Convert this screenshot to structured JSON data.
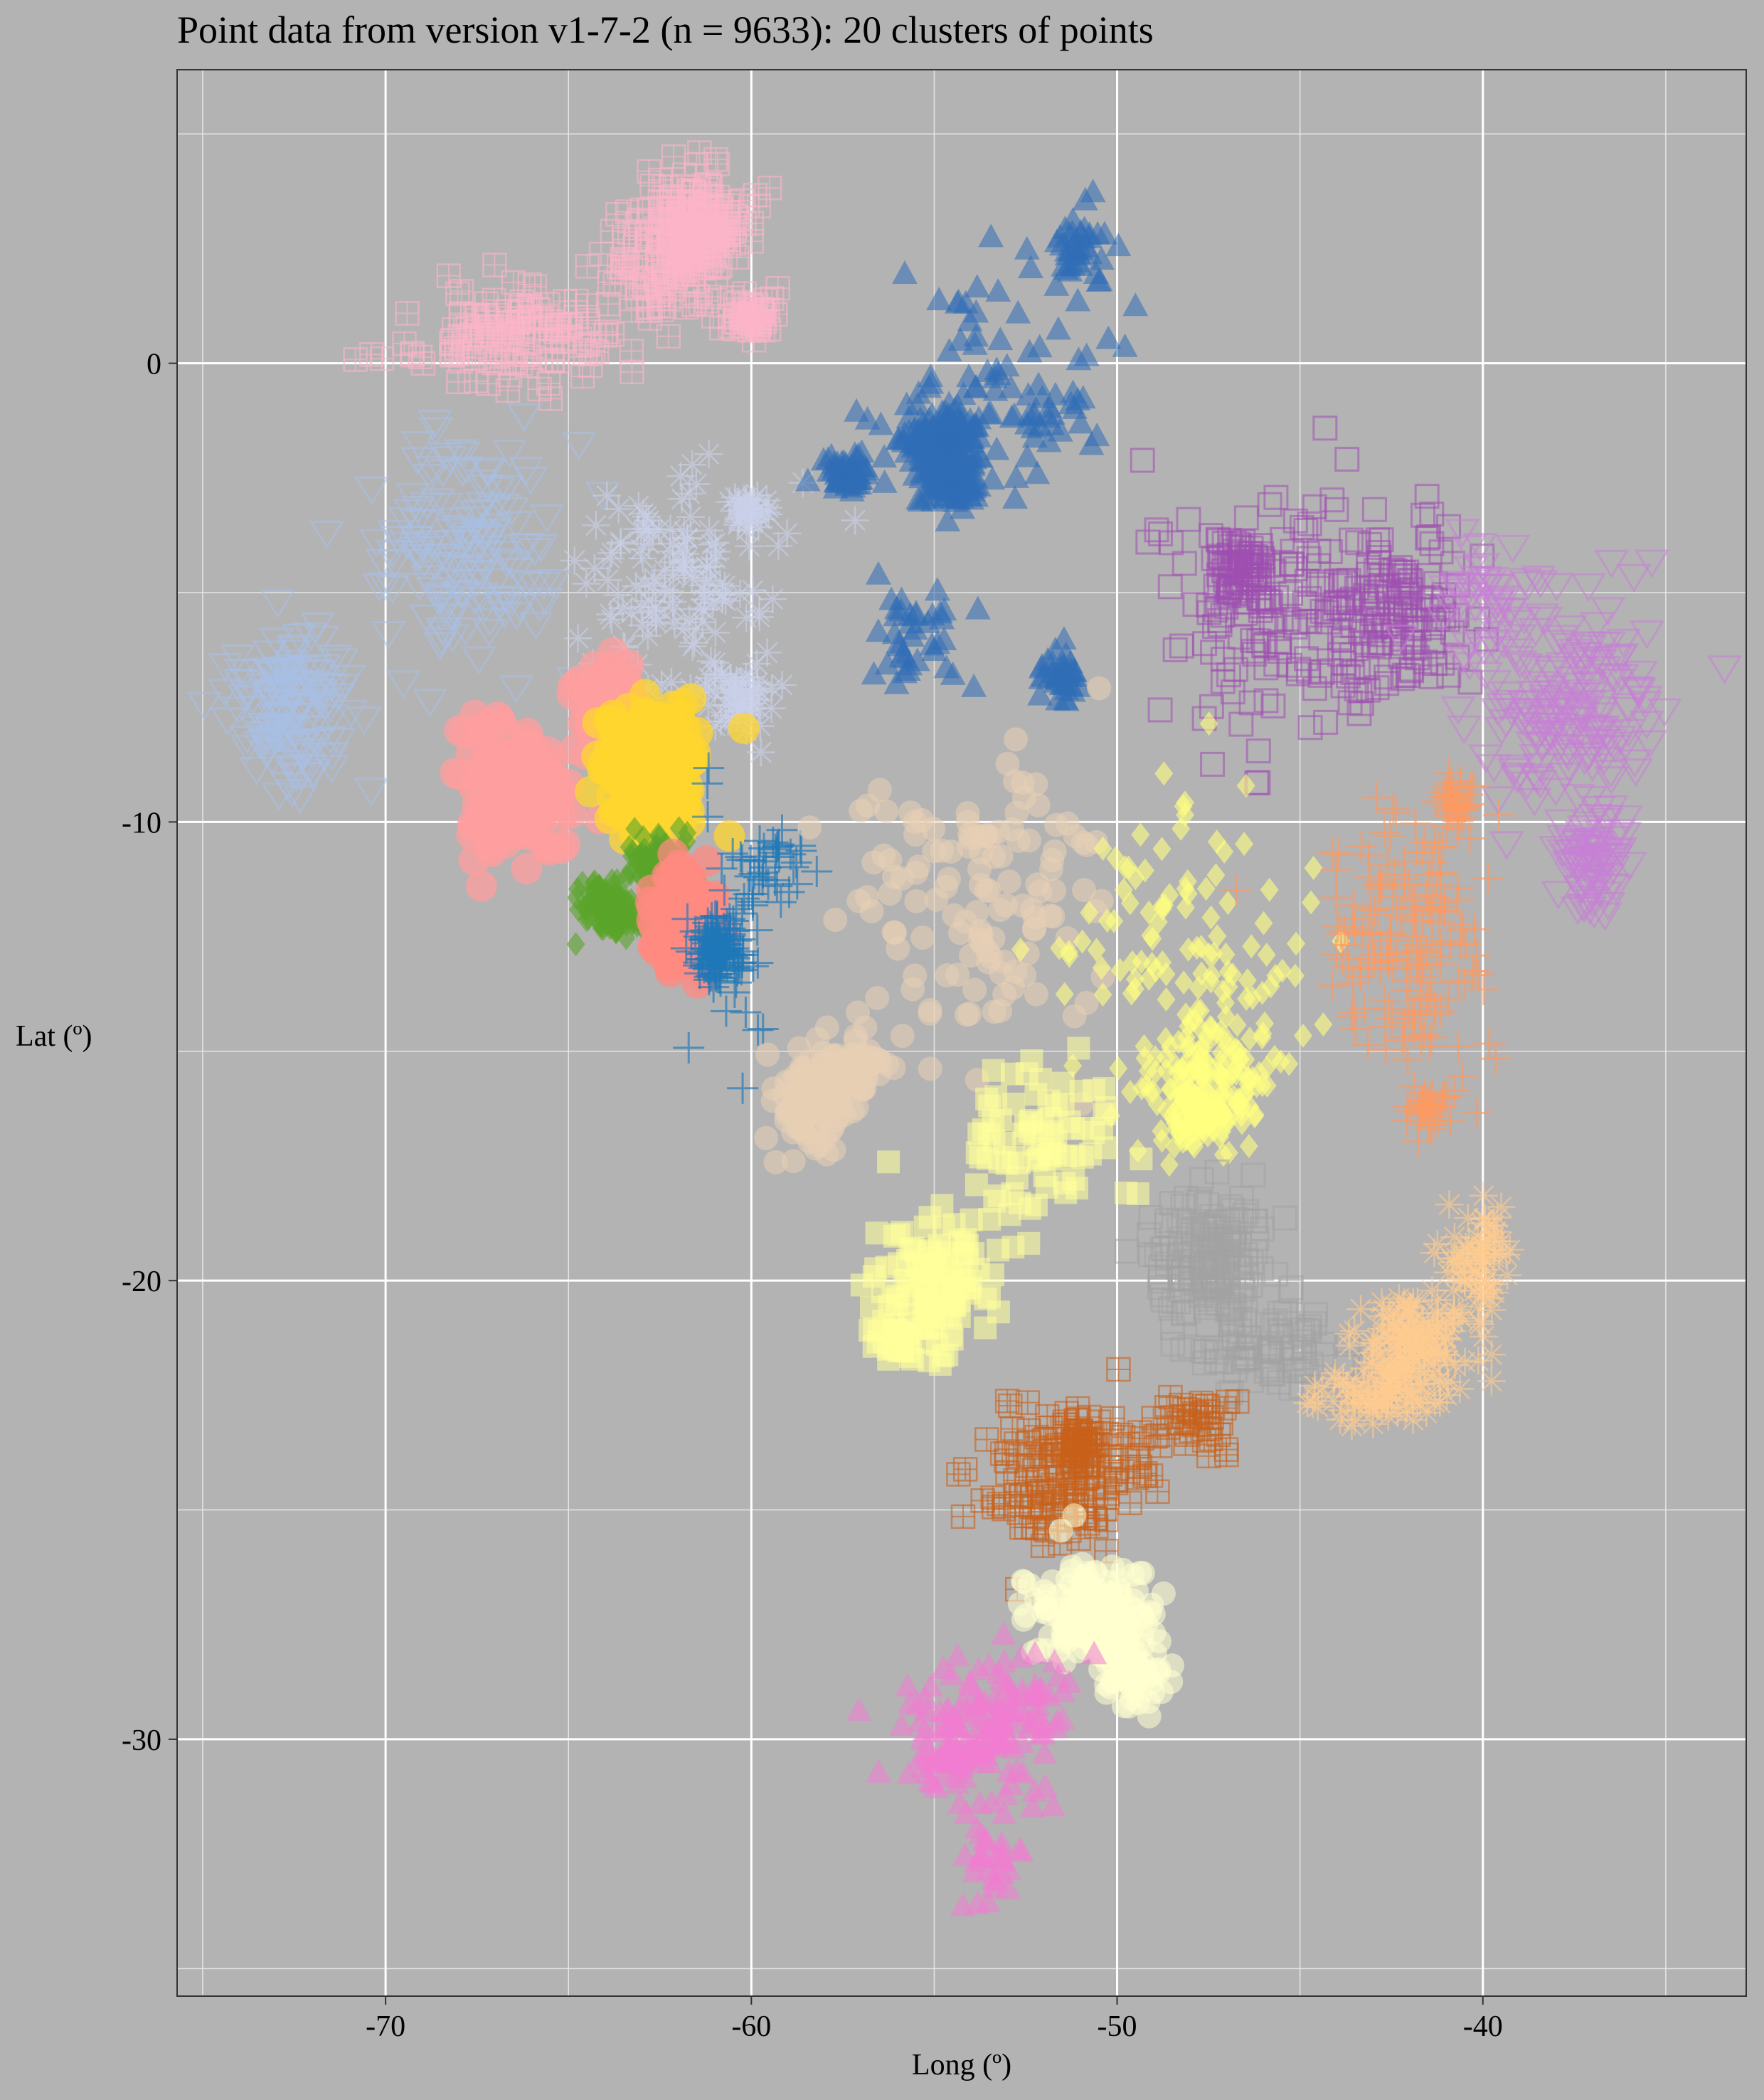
{
  "chart_data": {
    "type": "scatter",
    "title": "Point data from version v1-7-2 (n = 9633): 20 clusters of points",
    "xlabel": "Long (º)",
    "ylabel": "Lat (º)",
    "xlim": [
      -75.7,
      -32.8
    ],
    "ylim": [
      -35.6,
      6.4
    ],
    "xticks": [
      -70,
      -60,
      -50,
      -40
    ],
    "xtick_labels": [
      "-70",
      "-60",
      "-50",
      "-40"
    ],
    "yticks": [
      0,
      -10,
      -20,
      -30
    ],
    "ytick_labels": [
      "0",
      "-10",
      "-20",
      "-30"
    ],
    "grid": true,
    "legend": "none",
    "n": 9633,
    "series": [
      {
        "color": "#fbb4c8",
        "marker": "square-plus",
        "open": true,
        "clusters": [
          [
            -62.0,
            2.6,
            1.8,
            1.3,
            160
          ],
          [
            -66.5,
            0.6,
            2.6,
            0.9,
            140
          ],
          [
            -61.4,
            3.0,
            0.9,
            1.0,
            120
          ],
          [
            -60.0,
            1.0,
            0.6,
            0.4,
            60
          ]
        ]
      },
      {
        "color": "#a8c0e6",
        "marker": "tri-down",
        "open": true,
        "clusters": [
          [
            -72.5,
            -7.6,
            1.5,
            1.6,
            150
          ],
          [
            -68.0,
            -4.0,
            2.5,
            2.2,
            150
          ]
        ]
      },
      {
        "color": "#c9d0ea",
        "marker": "asterisk",
        "open": false,
        "clusters": [
          [
            -62.0,
            -5.0,
            2.5,
            2.3,
            130
          ],
          [
            -60.4,
            -7.2,
            0.7,
            0.7,
            50
          ],
          [
            -60.0,
            -3.2,
            0.5,
            0.4,
            30
          ]
        ]
      },
      {
        "color": "#2f6db6",
        "marker": "tri-up",
        "open": false,
        "clusters": [
          [
            -54.8,
            -1.6,
            0.9,
            0.5,
            140
          ],
          [
            -54.5,
            -2.6,
            0.7,
            0.5,
            100
          ],
          [
            -57.4,
            -2.4,
            0.5,
            0.4,
            60
          ],
          [
            -53.5,
            -1.0,
            3.0,
            2.5,
            90
          ],
          [
            -51.5,
            -6.8,
            0.5,
            0.6,
            40
          ],
          [
            -51.0,
            2.5,
            0.6,
            1.0,
            40
          ],
          [
            -55.5,
            -6.0,
            1.5,
            1.0,
            40
          ]
        ]
      },
      {
        "color": "#9e4fb0",
        "marker": "square",
        "open": true,
        "clusters": [
          [
            -42.5,
            -5.4,
            1.8,
            1.6,
            160
          ],
          [
            -46.5,
            -4.5,
            0.8,
            0.8,
            70
          ],
          [
            -46.0,
            -5.5,
            3.0,
            2.5,
            130
          ]
        ]
      },
      {
        "color": "#c77fd6",
        "marker": "tri-down",
        "open": true,
        "clusters": [
          [
            -37.6,
            -7.5,
            2.0,
            2.0,
            180
          ],
          [
            -37.0,
            -10.8,
            0.9,
            1.0,
            80
          ],
          [
            -40.0,
            -5.0,
            1.2,
            1.0,
            50
          ]
        ]
      },
      {
        "color": "#ff9e9e",
        "marker": "blob",
        "open": false,
        "clusters": [
          [
            -66.5,
            -9.5,
            1.3,
            1.4,
            140
          ],
          [
            -63.8,
            -7.6,
            0.8,
            1.0,
            60
          ]
        ]
      },
      {
        "color": "#ffd52e",
        "marker": "blob",
        "open": false,
        "clusters": [
          [
            -62.7,
            -8.8,
            1.2,
            1.2,
            220
          ]
        ]
      },
      {
        "color": "#5aa52a",
        "marker": "diamond",
        "open": false,
        "clusters": [
          [
            -63.8,
            -11.9,
            0.8,
            0.5,
            140
          ],
          [
            -62.5,
            -10.9,
            0.7,
            0.6,
            100
          ]
        ]
      },
      {
        "color": "#ff8a80",
        "marker": "blob",
        "open": false,
        "clusters": [
          [
            -61.8,
            -12.2,
            0.8,
            0.9,
            170
          ]
        ]
      },
      {
        "color": "#1f78b8",
        "marker": "plus",
        "open": false,
        "clusters": [
          [
            -61.0,
            -12.8,
            0.5,
            0.5,
            120
          ],
          [
            -60.5,
            -12.5,
            1.0,
            2.4,
            40
          ],
          [
            -59.3,
            -11.0,
            0.8,
            0.8,
            30
          ]
        ]
      },
      {
        "color": "#e8cfb4",
        "marker": "circle",
        "open": false,
        "clusters": [
          [
            -58.3,
            -16.0,
            1.1,
            1.0,
            110
          ],
          [
            -54.0,
            -11.5,
            3.3,
            3.3,
            130
          ],
          [
            -57.0,
            -15.3,
            0.6,
            0.6,
            30
          ]
        ]
      },
      {
        "color": "#ffff80",
        "marker": "diamond",
        "open": false,
        "clusters": [
          [
            -47.5,
            -15.7,
            1.5,
            1.3,
            150
          ],
          [
            -48.0,
            -13.0,
            3.3,
            3.2,
            120
          ],
          [
            -47.8,
            -16.5,
            0.8,
            0.4,
            40
          ]
        ]
      },
      {
        "color": "#ff9960",
        "marker": "plus",
        "open": false,
        "clusters": [
          [
            -42.0,
            -12.5,
            1.8,
            2.4,
            160
          ],
          [
            -40.7,
            -9.6,
            0.5,
            0.5,
            30
          ],
          [
            -41.6,
            -16.3,
            0.6,
            0.4,
            30
          ]
        ]
      },
      {
        "color": "#ffff9a",
        "marker": "square",
        "open": false,
        "clusters": [
          [
            -55.0,
            -20.0,
            1.7,
            1.5,
            120
          ],
          [
            -52.0,
            -17.0,
            1.7,
            1.5,
            80
          ],
          [
            -56.0,
            -21.2,
            0.6,
            0.4,
            30
          ]
        ]
      },
      {
        "color": "#a3a3a3",
        "marker": "square",
        "open": true,
        "clusters": [
          [
            -47.5,
            -19.5,
            1.6,
            1.3,
            180
          ],
          [
            -46.0,
            -21.5,
            1.7,
            1.0,
            80
          ]
        ]
      },
      {
        "color": "#ffcb90",
        "marker": "asterisk",
        "open": false,
        "clusters": [
          [
            -42.0,
            -21.5,
            1.4,
            1.0,
            150
          ],
          [
            -40.0,
            -19.5,
            0.8,
            1.2,
            70
          ],
          [
            -43.0,
            -22.5,
            1.5,
            0.6,
            60
          ]
        ]
      },
      {
        "color": "#c8601a",
        "marker": "square-plus",
        "open": true,
        "clusters": [
          [
            -51.5,
            -24.3,
            2.0,
            1.3,
            160
          ],
          [
            -51.0,
            -23.5,
            0.4,
            0.3,
            40
          ],
          [
            -48.0,
            -23.0,
            1.0,
            0.6,
            40
          ]
        ]
      },
      {
        "color": "#ffffd0",
        "marker": "circle",
        "open": false,
        "clusters": [
          [
            -50.7,
            -27.2,
            1.5,
            1.0,
            170
          ],
          [
            -49.5,
            -28.5,
            0.8,
            0.8,
            60
          ]
        ]
      },
      {
        "color": "#f27bd1",
        "marker": "tri-up",
        "open": false,
        "clusters": [
          [
            -54.0,
            -30.0,
            2.0,
            1.2,
            120
          ],
          [
            -53.5,
            -32.5,
            0.8,
            1.0,
            30
          ],
          [
            -52.5,
            -29.0,
            1.5,
            0.8,
            40
          ]
        ]
      }
    ]
  }
}
